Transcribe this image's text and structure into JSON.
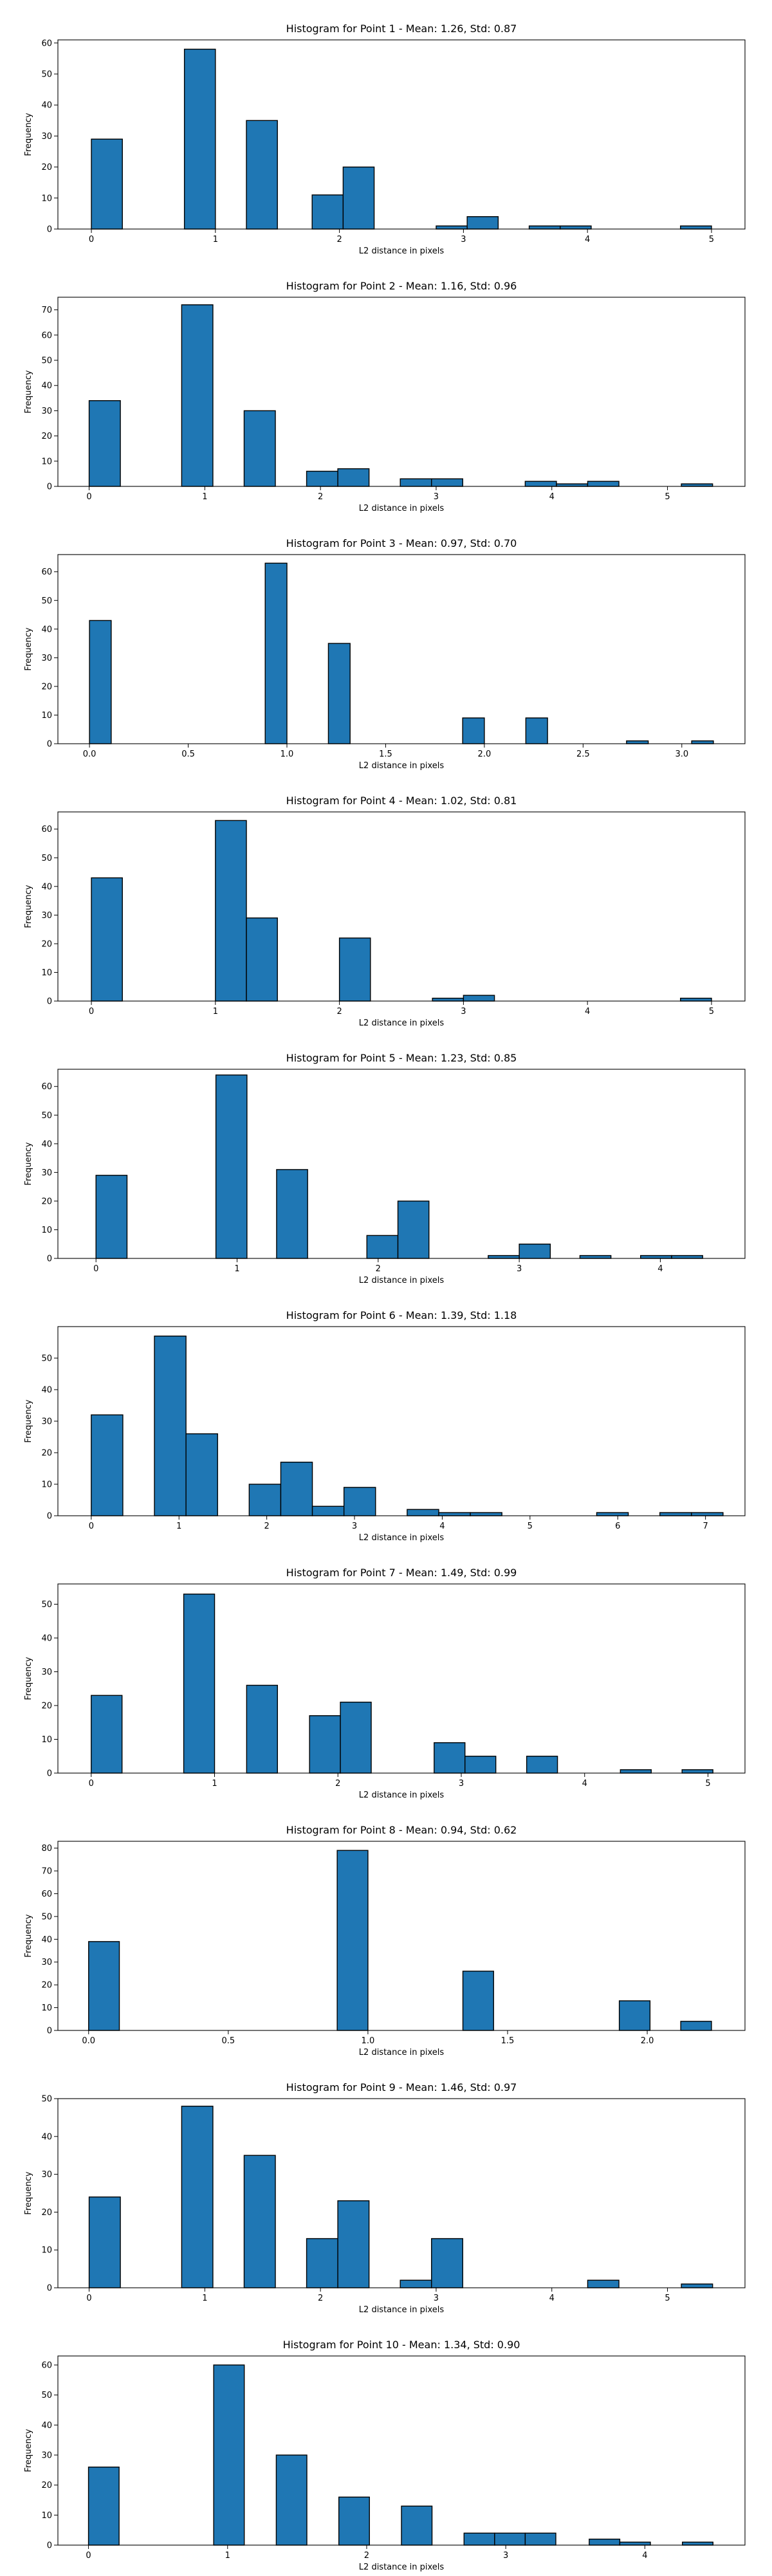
{
  "chart_data": [
    {
      "type": "bar",
      "title": "Histogram for Point 1 - Mean: 1.26, Std: 0.87",
      "xlabel": "L2 distance in pixels",
      "ylabel": "Frequency",
      "xlim": [
        -0.27,
        5.27
      ],
      "ylim": [
        0,
        61
      ],
      "xticks": [
        0,
        1,
        2,
        3,
        4,
        5
      ],
      "xtick_labels": [
        "0",
        "1",
        "2",
        "3",
        "4",
        "5"
      ],
      "yticks": [
        0,
        10,
        20,
        30,
        40,
        50,
        60
      ],
      "ytick_labels": [
        "0",
        "10",
        "20",
        "30",
        "40",
        "50",
        "60"
      ],
      "bins": [
        {
          "x0": 0,
          "x1": 0.25,
          "count": 29
        },
        {
          "x0": 0.75,
          "x1": 1.0,
          "count": 58
        },
        {
          "x0": 1.25,
          "x1": 1.5,
          "count": 35
        },
        {
          "x0": 1.78,
          "x1": 2.03,
          "count": 11
        },
        {
          "x0": 2.03,
          "x1": 2.28,
          "count": 20
        },
        {
          "x0": 2.78,
          "x1": 3.03,
          "count": 1
        },
        {
          "x0": 3.03,
          "x1": 3.28,
          "count": 4
        },
        {
          "x0": 3.53,
          "x1": 3.78,
          "count": 1
        },
        {
          "x0": 3.78,
          "x1": 4.03,
          "count": 1
        },
        {
          "x0": 4.75,
          "x1": 5.0,
          "count": 1
        }
      ]
    },
    {
      "type": "bar",
      "title": "Histogram for Point 2 - Mean: 1.16, Std: 0.96",
      "xlabel": "L2 distance in pixels",
      "ylabel": "Frequency",
      "xlim": [
        -0.27,
        5.67
      ],
      "ylim": [
        0,
        75
      ],
      "xticks": [
        0,
        1,
        2,
        3,
        4,
        5
      ],
      "xtick_labels": [
        "0",
        "1",
        "2",
        "3",
        "4",
        "5"
      ],
      "yticks": [
        0,
        10,
        20,
        30,
        40,
        50,
        60,
        70
      ],
      "ytick_labels": [
        "0",
        "10",
        "20",
        "30",
        "40",
        "50",
        "60",
        "70"
      ],
      "bins": [
        {
          "x0": 0,
          "x1": 0.27,
          "count": 34
        },
        {
          "x0": 0.8,
          "x1": 1.07,
          "count": 72
        },
        {
          "x0": 1.34,
          "x1": 1.61,
          "count": 30
        },
        {
          "x0": 1.88,
          "x1": 2.15,
          "count": 6
        },
        {
          "x0": 2.15,
          "x1": 2.42,
          "count": 7
        },
        {
          "x0": 2.69,
          "x1": 2.96,
          "count": 3
        },
        {
          "x0": 2.96,
          "x1": 3.23,
          "count": 3
        },
        {
          "x0": 3.77,
          "x1": 4.04,
          "count": 2
        },
        {
          "x0": 4.04,
          "x1": 4.31,
          "count": 1
        },
        {
          "x0": 4.31,
          "x1": 4.58,
          "count": 2
        },
        {
          "x0": 5.12,
          "x1": 5.39,
          "count": 1
        }
      ]
    },
    {
      "type": "bar",
      "title": "Histogram for Point 3 - Mean: 0.97, Std: 0.70",
      "xlabel": "L2 distance in pixels",
      "ylabel": "Frequency",
      "xlim": [
        -0.16,
        3.32
      ],
      "ylim": [
        0,
        66
      ],
      "xticks": [
        0,
        0.5,
        1.0,
        1.5,
        2.0,
        2.5,
        3.0
      ],
      "xtick_labels": [
        "0.0",
        "0.5",
        "1.0",
        "1.5",
        "2.0",
        "2.5",
        "3.0"
      ],
      "yticks": [
        0,
        10,
        20,
        30,
        40,
        50,
        60
      ],
      "ytick_labels": [
        "0",
        "10",
        "20",
        "30",
        "40",
        "50",
        "60"
      ],
      "bins": [
        {
          "x0": 0,
          "x1": 0.11,
          "count": 43
        },
        {
          "x0": 0.89,
          "x1": 1.0,
          "count": 63
        },
        {
          "x0": 1.21,
          "x1": 1.32,
          "count": 35
        },
        {
          "x0": 1.89,
          "x1": 2.0,
          "count": 9
        },
        {
          "x0": 2.21,
          "x1": 2.32,
          "count": 9
        },
        {
          "x0": 2.72,
          "x1": 2.83,
          "count": 1
        },
        {
          "x0": 3.05,
          "x1": 3.16,
          "count": 1
        }
      ]
    },
    {
      "type": "bar",
      "title": "Histogram for Point 4 - Mean: 1.02, Std: 0.81",
      "xlabel": "L2 distance in pixels",
      "ylabel": "Frequency",
      "xlim": [
        -0.27,
        5.27
      ],
      "ylim": [
        0,
        66
      ],
      "xticks": [
        0,
        1,
        2,
        3,
        4,
        5
      ],
      "xtick_labels": [
        "0",
        "1",
        "2",
        "3",
        "4",
        "5"
      ],
      "yticks": [
        0,
        10,
        20,
        30,
        40,
        50,
        60
      ],
      "ytick_labels": [
        "0",
        "10",
        "20",
        "30",
        "40",
        "50",
        "60"
      ],
      "bins": [
        {
          "x0": 0,
          "x1": 0.25,
          "count": 43
        },
        {
          "x0": 1.0,
          "x1": 1.25,
          "count": 63
        },
        {
          "x0": 1.25,
          "x1": 1.5,
          "count": 29
        },
        {
          "x0": 2.0,
          "x1": 2.25,
          "count": 22
        },
        {
          "x0": 2.75,
          "x1": 3.0,
          "count": 1
        },
        {
          "x0": 3.0,
          "x1": 3.25,
          "count": 2
        },
        {
          "x0": 4.75,
          "x1": 5.0,
          "count": 1
        }
      ]
    },
    {
      "type": "bar",
      "title": "Histogram for Point 5 - Mean: 1.23, Std: 0.85",
      "xlabel": "L2 distance in pixels",
      "ylabel": "Frequency",
      "xlim": [
        -0.27,
        4.6
      ],
      "ylim": [
        0,
        66
      ],
      "xticks": [
        0,
        1,
        2,
        3,
        4
      ],
      "xtick_labels": [
        "0",
        "1",
        "2",
        "3",
        "4"
      ],
      "yticks": [
        0,
        10,
        20,
        30,
        40,
        50,
        60
      ],
      "ytick_labels": [
        "0",
        "10",
        "20",
        "30",
        "40",
        "50",
        "60"
      ],
      "bins": [
        {
          "x0": 0,
          "x1": 0.22,
          "count": 29
        },
        {
          "x0": 0.85,
          "x1": 1.07,
          "count": 64
        },
        {
          "x0": 1.28,
          "x1": 1.5,
          "count": 31
        },
        {
          "x0": 1.92,
          "x1": 2.14,
          "count": 8
        },
        {
          "x0": 2.14,
          "x1": 2.36,
          "count": 20
        },
        {
          "x0": 2.78,
          "x1": 3.0,
          "count": 1
        },
        {
          "x0": 3.0,
          "x1": 3.22,
          "count": 5
        },
        {
          "x0": 3.43,
          "x1": 3.65,
          "count": 1
        },
        {
          "x0": 3.86,
          "x1": 4.08,
          "count": 1
        },
        {
          "x0": 4.08,
          "x1": 4.3,
          "count": 1
        }
      ]
    },
    {
      "type": "bar",
      "title": "Histogram for Point 6 - Mean: 1.39, Std: 1.18",
      "xlabel": "L2 distance in pixels",
      "ylabel": "Frequency",
      "xlim": [
        -0.38,
        7.45
      ],
      "ylim": [
        0,
        60
      ],
      "xticks": [
        0,
        1,
        2,
        3,
        4,
        5,
        6,
        7
      ],
      "xtick_labels": [
        "0",
        "1",
        "2",
        "3",
        "4",
        "5",
        "6",
        "7"
      ],
      "yticks": [
        0,
        10,
        20,
        30,
        40,
        50
      ],
      "ytick_labels": [
        "0",
        "10",
        "20",
        "30",
        "40",
        "50"
      ],
      "bins": [
        {
          "x0": 0,
          "x1": 0.36,
          "count": 32
        },
        {
          "x0": 0.72,
          "x1": 1.08,
          "count": 57
        },
        {
          "x0": 1.08,
          "x1": 1.44,
          "count": 26
        },
        {
          "x0": 1.8,
          "x1": 2.16,
          "count": 10
        },
        {
          "x0": 2.16,
          "x1": 2.52,
          "count": 17
        },
        {
          "x0": 2.52,
          "x1": 2.88,
          "count": 3
        },
        {
          "x0": 2.88,
          "x1": 3.24,
          "count": 9
        },
        {
          "x0": 3.6,
          "x1": 3.96,
          "count": 2
        },
        {
          "x0": 3.96,
          "x1": 4.32,
          "count": 1
        },
        {
          "x0": 4.32,
          "x1": 4.68,
          "count": 1
        },
        {
          "x0": 5.76,
          "x1": 6.12,
          "count": 1
        },
        {
          "x0": 6.48,
          "x1": 6.84,
          "count": 1
        },
        {
          "x0": 6.84,
          "x1": 7.2,
          "count": 1
        }
      ]
    },
    {
      "type": "bar",
      "title": "Histogram for Point 7 - Mean: 1.49, Std: 0.99",
      "xlabel": "L2 distance in pixels",
      "ylabel": "Frequency",
      "xlim": [
        -0.27,
        5.3
      ],
      "ylim": [
        0,
        56
      ],
      "xticks": [
        0,
        1,
        2,
        3,
        4,
        5
      ],
      "xtick_labels": [
        "0",
        "1",
        "2",
        "3",
        "4",
        "5"
      ],
      "yticks": [
        0,
        10,
        20,
        30,
        40,
        50
      ],
      "ytick_labels": [
        "0",
        "10",
        "20",
        "30",
        "40",
        "50"
      ],
      "bins": [
        {
          "x0": 0,
          "x1": 0.25,
          "count": 23
        },
        {
          "x0": 0.75,
          "x1": 1.0,
          "count": 53
        },
        {
          "x0": 1.26,
          "x1": 1.51,
          "count": 26
        },
        {
          "x0": 1.77,
          "x1": 2.02,
          "count": 17
        },
        {
          "x0": 2.02,
          "x1": 2.27,
          "count": 21
        },
        {
          "x0": 2.78,
          "x1": 3.03,
          "count": 9
        },
        {
          "x0": 3.03,
          "x1": 3.28,
          "count": 5
        },
        {
          "x0": 3.53,
          "x1": 3.78,
          "count": 5
        },
        {
          "x0": 4.29,
          "x1": 4.54,
          "count": 1
        },
        {
          "x0": 4.79,
          "x1": 5.04,
          "count": 1
        }
      ]
    },
    {
      "type": "bar",
      "title": "Histogram for Point 8 - Mean: 0.94, Std: 0.62",
      "xlabel": "L2 distance in pixels",
      "ylabel": "Frequency",
      "xlim": [
        -0.11,
        2.35
      ],
      "ylim": [
        0,
        83
      ],
      "xticks": [
        0,
        0.5,
        1.0,
        1.5,
        2.0
      ],
      "xtick_labels": [
        "0.0",
        "0.5",
        "1.0",
        "1.5",
        "2.0"
      ],
      "yticks": [
        0,
        10,
        20,
        30,
        40,
        50,
        60,
        70,
        80
      ],
      "ytick_labels": [
        "0",
        "10",
        "20",
        "30",
        "40",
        "50",
        "60",
        "70",
        "80"
      ],
      "bins": [
        {
          "x0": 0,
          "x1": 0.11,
          "count": 39
        },
        {
          "x0": 0.89,
          "x1": 1.0,
          "count": 79
        },
        {
          "x0": 1.34,
          "x1": 1.45,
          "count": 26
        },
        {
          "x0": 1.9,
          "x1": 2.01,
          "count": 13
        },
        {
          "x0": 2.12,
          "x1": 2.23,
          "count": 4
        }
      ]
    },
    {
      "type": "bar",
      "title": "Histogram for Point 9 - Mean: 1.46, Std: 0.97",
      "xlabel": "L2 distance in pixels",
      "ylabel": "Frequency",
      "xlim": [
        -0.27,
        5.67
      ],
      "ylim": [
        0,
        50
      ],
      "xticks": [
        0,
        1,
        2,
        3,
        4,
        5
      ],
      "xtick_labels": [
        "0",
        "1",
        "2",
        "3",
        "4",
        "5"
      ],
      "yticks": [
        0,
        10,
        20,
        30,
        40,
        50
      ],
      "ytick_labels": [
        "0",
        "10",
        "20",
        "30",
        "40",
        "50"
      ],
      "bins": [
        {
          "x0": 0,
          "x1": 0.27,
          "count": 24
        },
        {
          "x0": 0.8,
          "x1": 1.07,
          "count": 48
        },
        {
          "x0": 1.34,
          "x1": 1.61,
          "count": 35
        },
        {
          "x0": 1.88,
          "x1": 2.15,
          "count": 13
        },
        {
          "x0": 2.15,
          "x1": 2.42,
          "count": 23
        },
        {
          "x0": 2.69,
          "x1": 2.96,
          "count": 2
        },
        {
          "x0": 2.96,
          "x1": 3.23,
          "count": 13
        },
        {
          "x0": 4.31,
          "x1": 4.58,
          "count": 2
        },
        {
          "x0": 5.12,
          "x1": 5.39,
          "count": 1
        }
      ]
    },
    {
      "type": "bar",
      "title": "Histogram for Point 10 - Mean: 1.34, Std: 0.90",
      "xlabel": "L2 distance in pixels",
      "ylabel": "Frequency",
      "xlim": [
        -0.22,
        4.72
      ],
      "ylim": [
        0,
        63
      ],
      "xticks": [
        0,
        1,
        2,
        3,
        4
      ],
      "xtick_labels": [
        "0",
        "1",
        "2",
        "3",
        "4"
      ],
      "yticks": [
        0,
        10,
        20,
        30,
        40,
        50,
        60
      ],
      "ytick_labels": [
        "0",
        "10",
        "20",
        "30",
        "40",
        "50",
        "60"
      ],
      "bins": [
        {
          "x0": 0,
          "x1": 0.22,
          "count": 26
        },
        {
          "x0": 0.9,
          "x1": 1.12,
          "count": 60
        },
        {
          "x0": 1.35,
          "x1": 1.57,
          "count": 30
        },
        {
          "x0": 1.8,
          "x1": 2.02,
          "count": 16
        },
        {
          "x0": 2.25,
          "x1": 2.47,
          "count": 13
        },
        {
          "x0": 2.7,
          "x1": 2.92,
          "count": 4
        },
        {
          "x0": 2.92,
          "x1": 3.14,
          "count": 4
        },
        {
          "x0": 3.14,
          "x1": 3.36,
          "count": 4
        },
        {
          "x0": 3.6,
          "x1": 3.82,
          "count": 2
        },
        {
          "x0": 3.82,
          "x1": 4.04,
          "count": 1
        },
        {
          "x0": 4.27,
          "x1": 4.49,
          "count": 1
        }
      ]
    }
  ],
  "style": {
    "bar_color": "#1f77b4",
    "edge_color": "#000000",
    "axis_color": "#000000"
  }
}
